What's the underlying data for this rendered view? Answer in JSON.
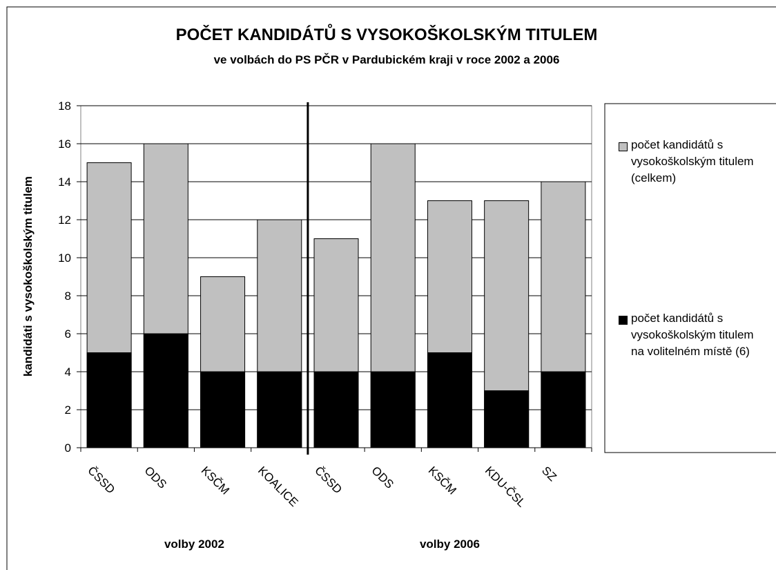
{
  "chart_data": {
    "type": "bar",
    "title": "POČET KANDIDÁTŮ S VYSOKOŠKOLSKÝM TITULEM",
    "subtitle": "ve volbách do PS PČR v Pardubickém kraji v roce 2002 a 2006",
    "y_label": "kandidáti s vysokoškolským titulem",
    "categories": [
      "ČSSD",
      "ODS",
      "KSČM",
      "KOALICE",
      "ČSSD",
      "ODS",
      "KSČM",
      "KDU-ČSL",
      "SZ"
    ],
    "groups": [
      "volby 2002",
      "volby 2006"
    ],
    "series": [
      {
        "name": "počet kandidátů s vysokoškolským titulem (celkem)",
        "color": "#c0c0c0",
        "values": [
          15,
          16,
          9,
          12,
          11,
          16,
          13,
          13,
          14
        ]
      },
      {
        "name": "počet kandidátů s vysokoškolským titulem na volitelném místě (6)",
        "color": "#000000",
        "values": [
          5,
          6,
          4,
          4,
          4,
          4,
          5,
          3,
          4
        ]
      }
    ],
    "ylim": [
      0,
      18
    ],
    "yticks": [
      0,
      2,
      4,
      6,
      8,
      10,
      12,
      14,
      16,
      18
    ],
    "grid": true
  }
}
